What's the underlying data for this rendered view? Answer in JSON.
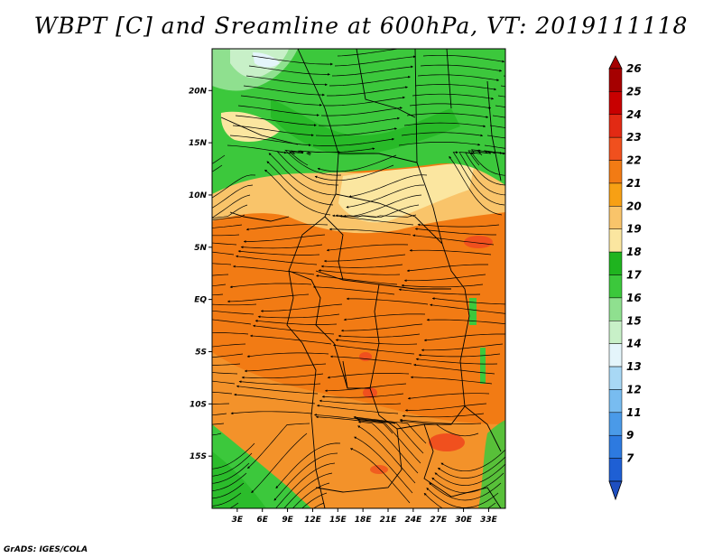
{
  "title": "WBPT [C] and Sreamline at 600hPa, VT: 2019111118",
  "credit": "GrADS: IGES/COLA",
  "map": {
    "variable": "Wet-bulb potential temperature with streamlines",
    "level": "600hPa",
    "valid_time": "2019111118",
    "lat_range": [
      -20,
      24
    ],
    "lon_range": [
      0,
      35
    ],
    "lat_ticks": [
      {
        "value": 20,
        "label": "20N"
      },
      {
        "value": 15,
        "label": "15N"
      },
      {
        "value": 10,
        "label": "10N"
      },
      {
        "value": 5,
        "label": "5N"
      },
      {
        "value": 0,
        "label": "EQ"
      },
      {
        "value": -5,
        "label": "5S"
      },
      {
        "value": -10,
        "label": "10S"
      },
      {
        "value": -15,
        "label": "15S"
      }
    ],
    "lon_ticks": [
      {
        "value": 3,
        "label": "3E"
      },
      {
        "value": 6,
        "label": "6E"
      },
      {
        "value": 9,
        "label": "9E"
      },
      {
        "value": 12,
        "label": "12E"
      },
      {
        "value": 15,
        "label": "15E"
      },
      {
        "value": 18,
        "label": "18E"
      },
      {
        "value": 21,
        "label": "21E"
      },
      {
        "value": 24,
        "label": "24E"
      },
      {
        "value": 27,
        "label": "27E"
      },
      {
        "value": 30,
        "label": "30E"
      },
      {
        "value": 33,
        "label": "33E"
      }
    ]
  },
  "colorbar": {
    "levels": [
      {
        "label": "26",
        "color": "#a50000"
      },
      {
        "label": "25",
        "color": "#c80000"
      },
      {
        "label": "24",
        "color": "#e22a14"
      },
      {
        "label": "23",
        "color": "#f0501e"
      },
      {
        "label": "22",
        "color": "#f27b14"
      },
      {
        "label": "21",
        "color": "#f7a014"
      },
      {
        "label": "20",
        "color": "#f9c46a"
      },
      {
        "label": "19",
        "color": "#fbe6a0"
      },
      {
        "label": "18",
        "color": "#1fb41f"
      },
      {
        "label": "17",
        "color": "#3cc83c"
      },
      {
        "label": "16",
        "color": "#8fe08f"
      },
      {
        "label": "15",
        "color": "#c8f0c8"
      },
      {
        "label": "14",
        "color": "#e4f5fb"
      },
      {
        "label": "13",
        "color": "#a8d8f5"
      },
      {
        "label": "12",
        "color": "#78bcf0"
      },
      {
        "label": "11",
        "color": "#4a9ae8"
      },
      {
        "label": "9",
        "color": "#2d7ae0"
      },
      {
        "label": "7",
        "color": "#1e5fd4"
      }
    ],
    "bottom_color": "#1e4fc0"
  }
}
